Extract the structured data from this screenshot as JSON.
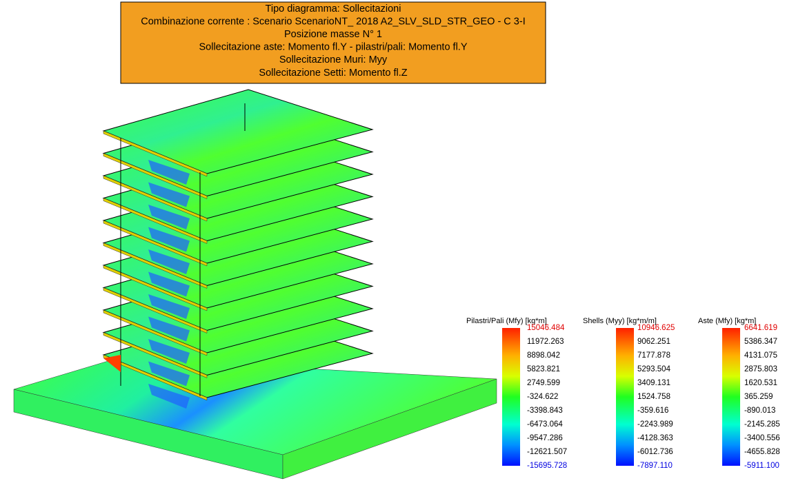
{
  "header": {
    "lines": [
      "Tipo diagramma: Sollecitazioni",
      "Combinazione corrente : Scenario ScenarioNT_ 2018 A2_SLV_SLD_STR_GEO - C 3-I",
      "Posizione masse N° 1",
      "Sollecitazione aste: Momento fl.Y - pilastri/pali: Momento fl.Y",
      "Sollecitazione Muri: Myy",
      "Sollecitazione Setti: Momento fl.Z"
    ]
  },
  "legends": [
    {
      "title": "Pilastri/Pali (Mfy) [kg*m]",
      "labels": [
        "15046.484",
        "11972.263",
        "8898.042",
        "5823.821",
        "2749.599",
        "-324.622",
        "-3398.843",
        "-6473.064",
        "-9547.286",
        "-12621.507",
        "-15695.728"
      ]
    },
    {
      "title": "Shells (Myy) [kg*m/m]",
      "labels": [
        "10946.625",
        "9062.251",
        "7177.878",
        "5293.504",
        "3409.131",
        "1524.758",
        "-359.616",
        "-2243.989",
        "-4128.363",
        "-6012.736",
        "-7897.110"
      ]
    },
    {
      "title": "Aste (Mfy) [kg*m]",
      "labels": [
        "6641.619",
        "5386.347",
        "4131.075",
        "2875.803",
        "1620.531",
        "365.259",
        "-890.013",
        "-2145.285",
        "-3400.556",
        "-4655.828",
        "-5911.100"
      ]
    }
  ]
}
